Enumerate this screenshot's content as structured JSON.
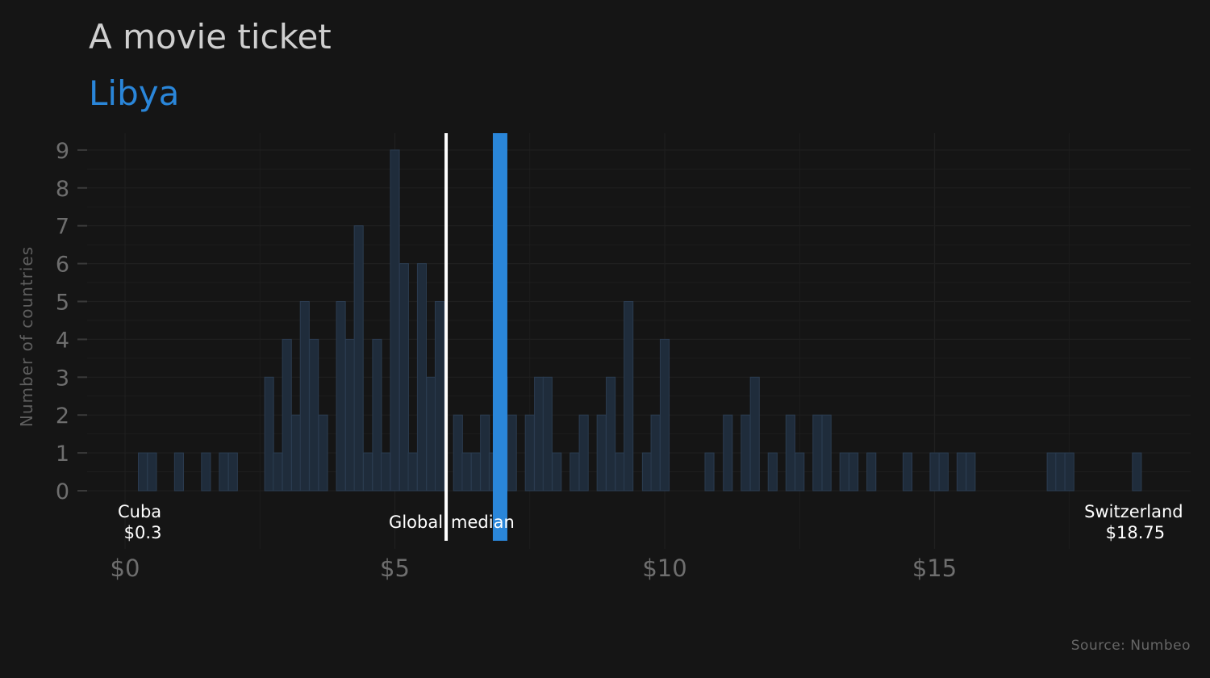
{
  "chart_data": {
    "type": "bar",
    "title": "A movie ticket",
    "subtitle": "Libya",
    "ylabel": "Number of countries",
    "xlabel": "",
    "xlim": [
      -0.7,
      19.0
    ],
    "ylim": [
      0,
      9.5
    ],
    "x_ticks": [
      {
        "value": 0,
        "label": "$0"
      },
      {
        "value": 5,
        "label": "$5"
      },
      {
        "value": 10,
        "label": "$10"
      },
      {
        "value": 15,
        "label": "$15"
      }
    ],
    "y_ticks": [
      0,
      1,
      2,
      3,
      4,
      5,
      6,
      7,
      8,
      9
    ],
    "bin_width": 0.166,
    "bins": [
      {
        "x": 0.33,
        "count": 1
      },
      {
        "x": 0.5,
        "count": 1
      },
      {
        "x": 1.0,
        "count": 1
      },
      {
        "x": 1.5,
        "count": 1
      },
      {
        "x": 1.83,
        "count": 1
      },
      {
        "x": 2.0,
        "count": 1
      },
      {
        "x": 2.67,
        "count": 3
      },
      {
        "x": 2.83,
        "count": 1
      },
      {
        "x": 3.0,
        "count": 4
      },
      {
        "x": 3.17,
        "count": 2
      },
      {
        "x": 3.33,
        "count": 5
      },
      {
        "x": 3.5,
        "count": 4
      },
      {
        "x": 3.67,
        "count": 2
      },
      {
        "x": 4.0,
        "count": 5
      },
      {
        "x": 4.17,
        "count": 4
      },
      {
        "x": 4.33,
        "count": 7
      },
      {
        "x": 4.5,
        "count": 1
      },
      {
        "x": 4.67,
        "count": 4
      },
      {
        "x": 4.83,
        "count": 1
      },
      {
        "x": 5.0,
        "count": 9
      },
      {
        "x": 5.17,
        "count": 6
      },
      {
        "x": 5.33,
        "count": 1
      },
      {
        "x": 5.5,
        "count": 6
      },
      {
        "x": 5.67,
        "count": 3
      },
      {
        "x": 5.83,
        "count": 5
      },
      {
        "x": 6.17,
        "count": 2
      },
      {
        "x": 6.33,
        "count": 1
      },
      {
        "x": 6.5,
        "count": 1
      },
      {
        "x": 6.67,
        "count": 2
      },
      {
        "x": 6.83,
        "count": 1
      },
      {
        "x": 7.0,
        "count": 3
      },
      {
        "x": 7.17,
        "count": 2
      },
      {
        "x": 7.5,
        "count": 2
      },
      {
        "x": 7.67,
        "count": 3
      },
      {
        "x": 7.83,
        "count": 3
      },
      {
        "x": 8.0,
        "count": 1
      },
      {
        "x": 8.33,
        "count": 1
      },
      {
        "x": 8.5,
        "count": 2
      },
      {
        "x": 8.83,
        "count": 2
      },
      {
        "x": 9.0,
        "count": 3
      },
      {
        "x": 9.17,
        "count": 1
      },
      {
        "x": 9.33,
        "count": 5
      },
      {
        "x": 9.67,
        "count": 1
      },
      {
        "x": 9.83,
        "count": 2
      },
      {
        "x": 10.0,
        "count": 4
      },
      {
        "x": 10.83,
        "count": 1
      },
      {
        "x": 11.17,
        "count": 2
      },
      {
        "x": 11.5,
        "count": 2
      },
      {
        "x": 11.67,
        "count": 3
      },
      {
        "x": 12.0,
        "count": 1
      },
      {
        "x": 12.33,
        "count": 2
      },
      {
        "x": 12.5,
        "count": 1
      },
      {
        "x": 12.83,
        "count": 2
      },
      {
        "x": 13.0,
        "count": 2
      },
      {
        "x": 13.33,
        "count": 1
      },
      {
        "x": 13.5,
        "count": 1
      },
      {
        "x": 13.83,
        "count": 1
      },
      {
        "x": 14.5,
        "count": 1
      },
      {
        "x": 15.0,
        "count": 1
      },
      {
        "x": 15.17,
        "count": 1
      },
      {
        "x": 15.5,
        "count": 1
      },
      {
        "x": 15.67,
        "count": 1
      },
      {
        "x": 17.17,
        "count": 1
      },
      {
        "x": 17.33,
        "count": 1
      },
      {
        "x": 17.5,
        "count": 1
      },
      {
        "x": 18.75,
        "count": 1
      }
    ],
    "global_median": {
      "value": 5.95,
      "label_left": "Global",
      "label_right": "median"
    },
    "highlight": {
      "value": 6.95
    },
    "annotations": [
      {
        "name": "min",
        "country": "Cuba",
        "value_label": "$0.3",
        "x": 0.3
      },
      {
        "name": "max",
        "country": "Switzerland",
        "value_label": "$18.75",
        "x": 18.75
      }
    ],
    "source": "Source: Numbeo",
    "grid": true,
    "colors": {
      "background": "#151515",
      "bar_fill": "#1f2c3b",
      "bar_stroke": "#2b3c50",
      "highlight": "#2a86d9",
      "median": "#ffffff",
      "grid": "#1f1f1f",
      "axis_text": "#6e6e6e"
    }
  }
}
